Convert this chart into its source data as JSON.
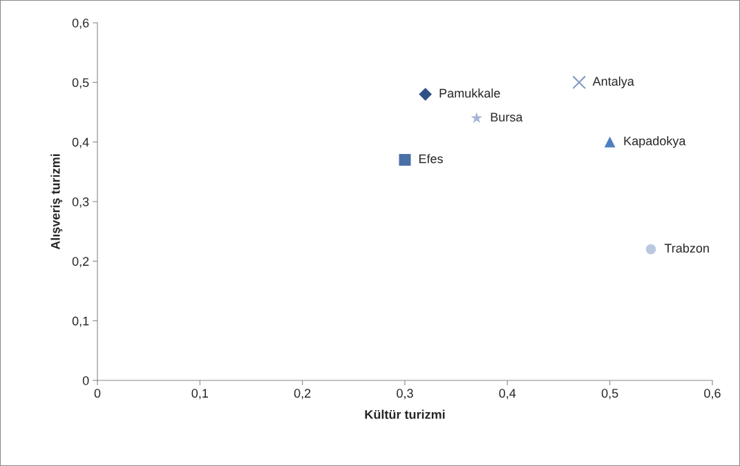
{
  "chart_data": {
    "type": "scatter",
    "xlabel": "Kültür turizmi",
    "ylabel": "Alışveriş turizmi",
    "xlim": [
      0,
      0.6
    ],
    "ylim": [
      0,
      0.6
    ],
    "xticks": [
      0,
      {
        "value": 0.1,
        "label": "0,1"
      },
      {
        "value": 0.2,
        "label": "0,2"
      },
      {
        "value": 0.3,
        "label": "0,3"
      },
      {
        "value": 0.4,
        "label": "0,4"
      },
      {
        "value": 0.5,
        "label": "0,5"
      },
      {
        "value": 0.6,
        "label": "0,6"
      }
    ],
    "yticks": [
      0,
      {
        "value": 0.1,
        "label": "0,1"
      },
      {
        "value": 0.2,
        "label": "0,2"
      },
      {
        "value": 0.3,
        "label": "0,3"
      },
      {
        "value": 0.4,
        "label": "0,4"
      },
      {
        "value": 0.5,
        "label": "0,5"
      },
      {
        "value": 0.6,
        "label": "0,6"
      }
    ],
    "grid": false,
    "legend": false,
    "series": [
      {
        "name": "Pamukkale",
        "color": "#2f5286",
        "marker": "diamond",
        "x": [
          0.32
        ],
        "values": [
          0.48
        ]
      },
      {
        "name": "Efes",
        "color": "#4a70a8",
        "marker": "square",
        "x": [
          0.3
        ],
        "values": [
          0.37
        ]
      },
      {
        "name": "Kapadokya",
        "color": "#4f7fc0",
        "marker": "triangle",
        "x": [
          0.5
        ],
        "values": [
          0.4
        ]
      },
      {
        "name": "Antalya",
        "color": "#7d96bb",
        "marker": "cross",
        "x": [
          0.47
        ],
        "values": [
          0.5
        ]
      },
      {
        "name": "Bursa",
        "color": "#a4b6d8",
        "marker": "star",
        "x": [
          0.37
        ],
        "values": [
          0.44
        ]
      },
      {
        "name": "Trabzon",
        "color": "#bcc8e0",
        "marker": "circle",
        "x": [
          0.54
        ],
        "values": [
          0.22
        ]
      }
    ]
  }
}
